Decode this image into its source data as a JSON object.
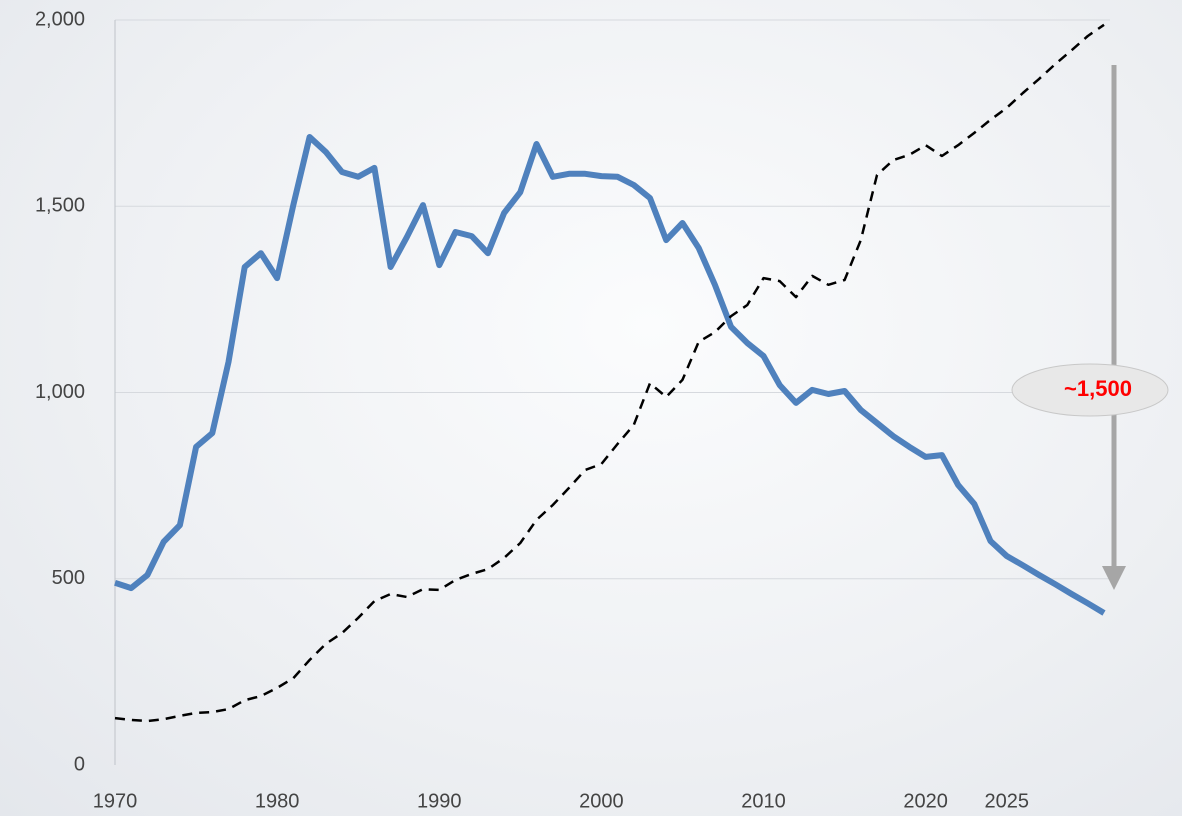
{
  "chart_data": {
    "type": "line",
    "x": [
      1970,
      1971,
      1972,
      1973,
      1974,
      1975,
      1976,
      1977,
      1978,
      1979,
      1980,
      1981,
      1982,
      1983,
      1984,
      1985,
      1986,
      1987,
      1988,
      1989,
      1990,
      1991,
      1992,
      1993,
      1994,
      1995,
      1996,
      1997,
      1998,
      1999,
      2000,
      2001,
      2002,
      2003,
      2004,
      2005,
      2006,
      2007,
      2008,
      2009,
      2010,
      2011,
      2012,
      2013,
      2014,
      2015,
      2016,
      2017,
      2018,
      2019,
      2020,
      2021,
      2022,
      2023,
      2024,
      2025,
      2026,
      2027,
      2028,
      2029,
      2030,
      2031
    ],
    "series": [
      {
        "color": "#4f81bd",
        "style": "solid",
        "values": [
          489,
          475,
          510,
          599,
          644,
          854,
          891,
          1082,
          1337,
          1374,
          1307,
          1503,
          1686,
          1646,
          1592,
          1579,
          1603,
          1337,
          1417,
          1503,
          1342,
          1431,
          1420,
          1374,
          1482,
          1538,
          1667,
          1579,
          1587,
          1587,
          1581,
          1579,
          1557,
          1522,
          1409,
          1455,
          1388,
          1289,
          1176,
          1133,
          1098,
          1020,
          972,
          1007,
          996,
          1004,
          953,
          918,
          883,
          854,
          827,
          832,
          752,
          701,
          601,
          561,
          536,
          510,
          485,
          459,
          434,
          408
        ]
      },
      {
        "color": "#000000",
        "style": "dashed",
        "values": [
          126,
          121,
          118,
          123,
          132,
          140,
          142,
          150,
          174,
          185,
          207,
          233,
          282,
          325,
          354,
          395,
          440,
          459,
          451,
          472,
          470,
          497,
          513,
          526,
          556,
          596,
          658,
          698,
          744,
          792,
          808,
          862,
          913,
          1025,
          988,
          1034,
          1136,
          1162,
          1205,
          1235,
          1307,
          1299,
          1256,
          1313,
          1289,
          1302,
          1409,
          1584,
          1624,
          1638,
          1664,
          1635,
          1664,
          1697,
          1732,
          1764,
          1804,
          1842,
          1882,
          1919,
          1957,
          1987
        ]
      }
    ],
    "xlim": [
      1970,
      2031
    ],
    "xticks": [
      1970,
      1980,
      1990,
      2000,
      2010,
      2020,
      2025
    ],
    "ylim": [
      0,
      2000
    ],
    "yticks": [
      0,
      500,
      {
        "value": 1000,
        "label": "1,000"
      },
      {
        "value": 1500,
        "label": "1,500"
      },
      {
        "value": 2000,
        "label": "2,000"
      }
    ],
    "grid": true,
    "annotation": "~1,500"
  }
}
